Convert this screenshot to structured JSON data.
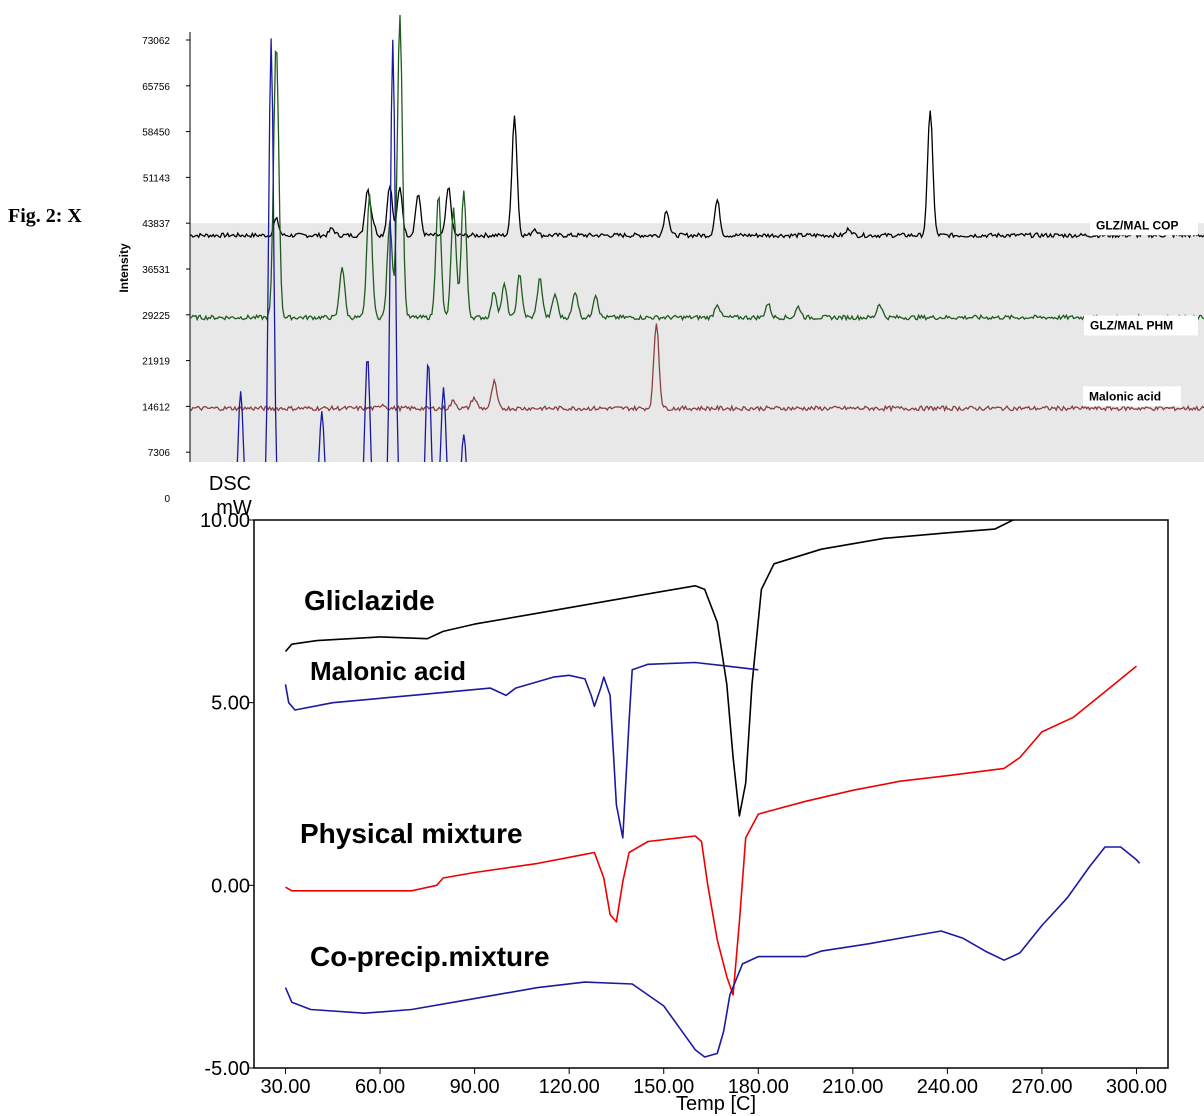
{
  "figure": {
    "caption": "Fig. 2: X"
  },
  "chart_data": [
    {
      "type": "line",
      "title": "",
      "ylabel": "Intensity",
      "xlabel": "",
      "ylim": [
        0,
        77000
      ],
      "yticks": [
        "73062",
        "65756",
        "58450",
        "51143",
        "43837",
        "36531",
        "29225",
        "21919",
        "14612",
        "7306",
        "0"
      ],
      "ytick_values": [
        73062,
        65756,
        58450,
        51143,
        43837,
        36531,
        29225,
        21919,
        14612,
        7306,
        0
      ],
      "background": "#e8e8e8",
      "series": [
        {
          "name": "GLZ/MAL COP",
          "color": "#000000",
          "baseline": 41900,
          "peaks": [
            [
              0.085,
              44500
            ],
            [
              0.14,
              43000
            ],
            [
              0.175,
              49000
            ],
            [
              0.18,
              44000
            ],
            [
              0.197,
              50000
            ],
            [
              0.207,
              49500
            ],
            [
              0.225,
              48500
            ],
            [
              0.255,
              49500
            ],
            [
              0.32,
              61000
            ],
            [
              0.34,
              43000
            ],
            [
              0.47,
              46000
            ],
            [
              0.52,
              47500
            ],
            [
              0.65,
              43000
            ],
            [
              0.73,
              62000
            ]
          ]
        },
        {
          "name": "GLZ/MAL PHM",
          "color": "#1f5a1f",
          "baseline": 28800,
          "peaks": [
            [
              0.085,
              73000
            ],
            [
              0.15,
              37000
            ],
            [
              0.177,
              48500
            ],
            [
              0.197,
              44000
            ],
            [
              0.207,
              77000
            ],
            [
              0.245,
              48500
            ],
            [
              0.26,
              46000
            ],
            [
              0.27,
              49000
            ],
            [
              0.3,
              33000
            ],
            [
              0.31,
              34000
            ],
            [
              0.325,
              35500
            ],
            [
              0.345,
              35000
            ],
            [
              0.36,
              32500
            ],
            [
              0.38,
              33000
            ],
            [
              0.4,
              32500
            ],
            [
              0.52,
              31000
            ],
            [
              0.57,
              31000
            ],
            [
              0.6,
              30500
            ],
            [
              0.68,
              31000
            ]
          ]
        },
        {
          "name": "Malonic acid",
          "color": "#8b4040",
          "baseline": 14300,
          "peaks": [
            [
              0.19,
              15000
            ],
            [
              0.26,
              15500
            ],
            [
              0.28,
              16000
            ],
            [
              0.3,
              18500
            ],
            [
              0.46,
              28000
            ]
          ]
        },
        {
          "name": "",
          "color": "#1a1aa0",
          "baseline": -2000,
          "peaks": [
            [
              0.05,
              17000
            ],
            [
              0.08,
              73000
            ],
            [
              0.13,
              14000
            ],
            [
              0.175,
              23000
            ],
            [
              0.2,
              73000
            ],
            [
              0.235,
              22000
            ],
            [
              0.25,
              18000
            ],
            [
              0.27,
              10000
            ],
            [
              0.32,
              5000
            ],
            [
              0.335,
              4500
            ],
            [
              0.35,
              4500
            ],
            [
              0.36,
              4500
            ]
          ]
        }
      ]
    },
    {
      "type": "line",
      "title": "",
      "ylabel_line1": "DSC",
      "ylabel_line2": "mW",
      "xlabel": "Temp  [C]",
      "xlim": [
        20,
        310
      ],
      "ylim": [
        -5.0,
        10.0
      ],
      "xticks": [
        "30.00",
        "60.00",
        "90.00",
        "120.00",
        "150.00",
        "180.00",
        "210.00",
        "240.00",
        "270.00",
        "300.00"
      ],
      "xtick_values": [
        30,
        60,
        90,
        120,
        150,
        180,
        210,
        240,
        270,
        300
      ],
      "yticks": [
        "10.00",
        "5.00",
        "0.00",
        "-5.00"
      ],
      "ytick_values": [
        10,
        5,
        0,
        -5
      ],
      "series": [
        {
          "name": "Gliclazide",
          "color": "#000000",
          "points": [
            [
              30,
              6.4
            ],
            [
              32,
              6.6
            ],
            [
              40,
              6.7
            ],
            [
              60,
              6.8
            ],
            [
              75,
              6.75
            ],
            [
              80,
              6.95
            ],
            [
              90,
              7.15
            ],
            [
              110,
              7.45
            ],
            [
              130,
              7.75
            ],
            [
              150,
              8.05
            ],
            [
              160,
              8.2
            ],
            [
              163,
              8.1
            ],
            [
              167,
              7.2
            ],
            [
              170,
              5.5
            ],
            [
              172,
              3.5
            ],
            [
              174,
              1.9
            ],
            [
              176,
              2.8
            ],
            [
              178,
              5.5
            ],
            [
              181,
              8.1
            ],
            [
              185,
              8.8
            ],
            [
              200,
              9.2
            ],
            [
              220,
              9.5
            ],
            [
              240,
              9.65
            ],
            [
              255,
              9.75
            ],
            [
              262,
              10.05
            ],
            [
              270,
              10.4
            ]
          ]
        },
        {
          "name": "Malonic acid",
          "color": "#1a1aa0",
          "points": [
            [
              30,
              5.5
            ],
            [
              31,
              5.0
            ],
            [
              33,
              4.8
            ],
            [
              45,
              5.0
            ],
            [
              70,
              5.2
            ],
            [
              95,
              5.4
            ],
            [
              100,
              5.2
            ],
            [
              103,
              5.4
            ],
            [
              115,
              5.7
            ],
            [
              120,
              5.75
            ],
            [
              125,
              5.65
            ],
            [
              127,
              5.2
            ],
            [
              128,
              4.9
            ],
            [
              130,
              5.4
            ],
            [
              131,
              5.7
            ],
            [
              133,
              5.2
            ],
            [
              135,
              2.2
            ],
            [
              137,
              1.3
            ],
            [
              139,
              4.5
            ],
            [
              140,
              5.9
            ],
            [
              145,
              6.05
            ],
            [
              160,
              6.1
            ],
            [
              170,
              6.0
            ],
            [
              180,
              5.9
            ]
          ]
        },
        {
          "name": "Physical mixture",
          "color": "#ee0000",
          "points": [
            [
              30,
              -0.05
            ],
            [
              32,
              -0.15
            ],
            [
              40,
              -0.15
            ],
            [
              55,
              -0.15
            ],
            [
              70,
              -0.15
            ],
            [
              78,
              0.0
            ],
            [
              80,
              0.2
            ],
            [
              90,
              0.35
            ],
            [
              110,
              0.6
            ],
            [
              125,
              0.85
            ],
            [
              128,
              0.9
            ],
            [
              131,
              0.2
            ],
            [
              133,
              -0.8
            ],
            [
              135,
              -1.0
            ],
            [
              137,
              0.1
            ],
            [
              139,
              0.9
            ],
            [
              145,
              1.2
            ],
            [
              155,
              1.3
            ],
            [
              160,
              1.35
            ],
            [
              162,
              1.2
            ],
            [
              164,
              0.0
            ],
            [
              167,
              -1.5
            ],
            [
              170,
              -2.5
            ],
            [
              172,
              -3.0
            ],
            [
              174,
              -1.0
            ],
            [
              176,
              1.3
            ],
            [
              180,
              1.95
            ],
            [
              195,
              2.3
            ],
            [
              210,
              2.6
            ],
            [
              225,
              2.85
            ],
            [
              240,
              3.0
            ],
            [
              258,
              3.2
            ],
            [
              263,
              3.5
            ],
            [
              270,
              4.2
            ],
            [
              280,
              4.6
            ],
            [
              290,
              5.3
            ],
            [
              300,
              6.0
            ]
          ]
        },
        {
          "name": "Co-precip.mixture",
          "color": "#1a1aa0",
          "points": [
            [
              30,
              -2.8
            ],
            [
              32,
              -3.2
            ],
            [
              38,
              -3.4
            ],
            [
              55,
              -3.5
            ],
            [
              70,
              -3.4
            ],
            [
              90,
              -3.1
            ],
            [
              110,
              -2.8
            ],
            [
              125,
              -2.65
            ],
            [
              140,
              -2.7
            ],
            [
              150,
              -3.3
            ],
            [
              155,
              -3.9
            ],
            [
              160,
              -4.5
            ],
            [
              163,
              -4.7
            ],
            [
              167,
              -4.6
            ],
            [
              169,
              -4.0
            ],
            [
              171,
              -3.0
            ],
            [
              175,
              -2.15
            ],
            [
              180,
              -1.95
            ],
            [
              190,
              -1.95
            ],
            [
              195,
              -1.95
            ],
            [
              200,
              -1.8
            ],
            [
              215,
              -1.6
            ],
            [
              228,
              -1.4
            ],
            [
              238,
              -1.25
            ],
            [
              245,
              -1.45
            ],
            [
              252,
              -1.8
            ],
            [
              258,
              -2.05
            ],
            [
              263,
              -1.85
            ],
            [
              270,
              -1.1
            ],
            [
              278,
              -0.35
            ],
            [
              285,
              0.5
            ],
            [
              290,
              1.05
            ],
            [
              295,
              1.05
            ],
            [
              300,
              0.7
            ],
            [
              301,
              0.6
            ]
          ]
        }
      ]
    }
  ]
}
